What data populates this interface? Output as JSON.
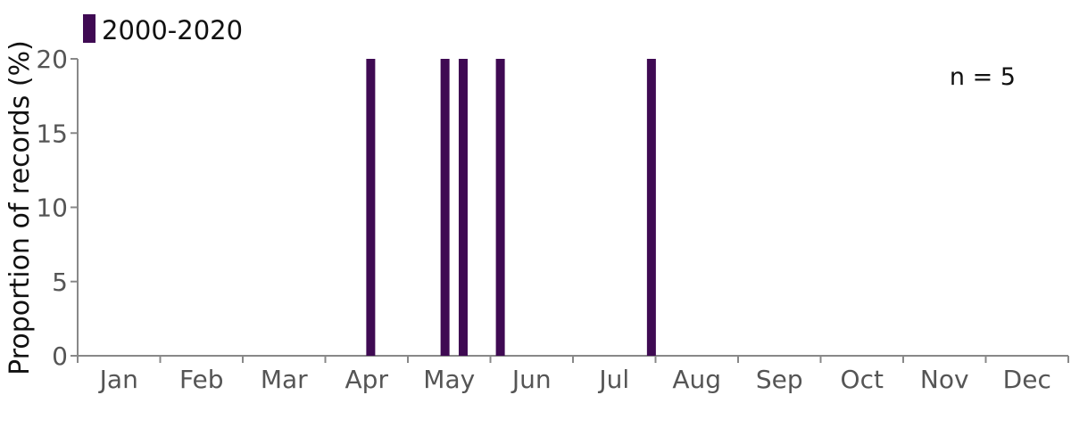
{
  "chart_data": {
    "type": "bar",
    "ylabel": "Proportion of records (%)",
    "ylim": [
      0,
      20
    ],
    "yticks": [
      0,
      5,
      10,
      15,
      20
    ],
    "months": [
      "Jan",
      "Feb",
      "Mar",
      "Apr",
      "May",
      "Jun",
      "Jul",
      "Aug",
      "Sep",
      "Oct",
      "Nov",
      "Dec"
    ],
    "series": [
      {
        "name": "2000-2020",
        "color": "#3f0a53",
        "points": [
          {
            "month": 4.55,
            "value": 20
          },
          {
            "month": 5.45,
            "value": 20
          },
          {
            "month": 5.67,
            "value": 20
          },
          {
            "month": 6.12,
            "value": 20
          },
          {
            "month": 7.95,
            "value": 20
          }
        ]
      }
    ],
    "annotation": "n = 5",
    "legend_position": "top-left",
    "grid": false
  }
}
